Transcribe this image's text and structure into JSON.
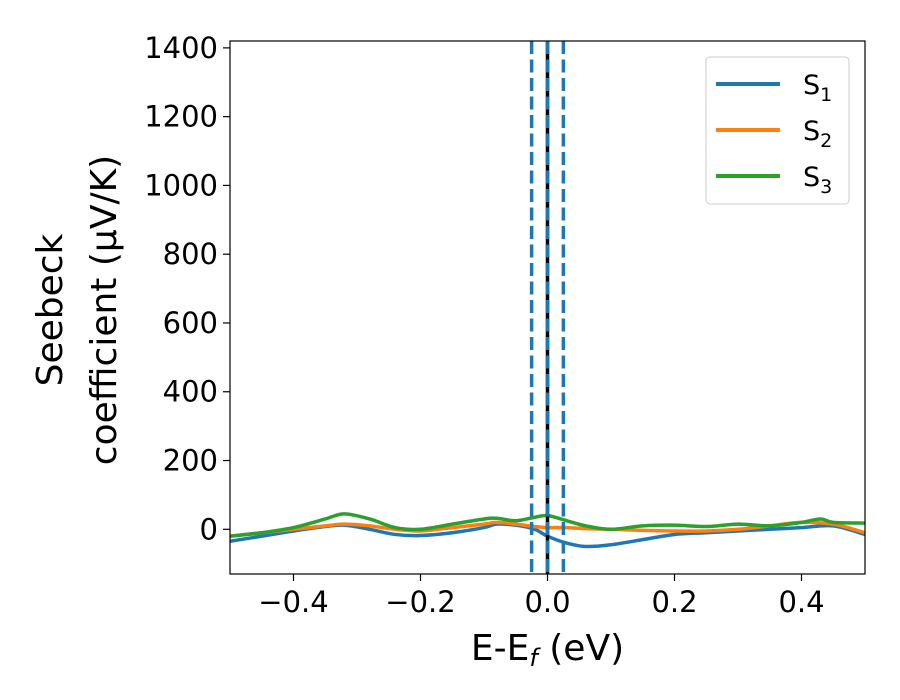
{
  "chart_data": {
    "type": "line",
    "xlabel": "E-E_f (eV)",
    "ylabel_line1": "Seebeck",
    "ylabel_line2": "coefficient  (μV/K)",
    "xlim": [
      -0.5,
      0.5
    ],
    "ylim": [
      -130,
      1420
    ],
    "xticks": [
      -0.4,
      -0.2,
      0.0,
      0.2,
      0.4
    ],
    "xtick_labels": [
      "−0.4",
      "−0.2",
      "0.0",
      "0.2",
      "0.4"
    ],
    "yticks": [
      0,
      200,
      400,
      600,
      800,
      1000,
      1200,
      1400
    ],
    "ytick_labels": [
      "0",
      "200",
      "400",
      "600",
      "800",
      "1000",
      "1200",
      "1400"
    ],
    "grid": false,
    "legend_position": "top-right",
    "vlines": [
      {
        "x": 0.0,
        "style": "solid",
        "color": "#000000"
      },
      {
        "x": -0.025,
        "style": "dashed",
        "color": "#1f77b4"
      },
      {
        "x": 0.0,
        "style": "dashed",
        "color": "#1f77b4"
      },
      {
        "x": 0.025,
        "style": "dashed",
        "color": "#1f77b4"
      }
    ],
    "series": [
      {
        "name": "S1",
        "label_main": "S",
        "label_sub": "1",
        "color": "#1f77b4",
        "x": [
          -0.5,
          -0.45,
          -0.4,
          -0.35,
          -0.32,
          -0.28,
          -0.24,
          -0.2,
          -0.15,
          -0.1,
          -0.08,
          -0.05,
          -0.02,
          0.0,
          0.03,
          0.06,
          0.1,
          0.15,
          0.2,
          0.25,
          0.3,
          0.35,
          0.4,
          0.45,
          0.5
        ],
        "y": [
          -35,
          -20,
          -5,
          8,
          12,
          0,
          -15,
          -18,
          -10,
          5,
          15,
          12,
          0,
          -20,
          -40,
          -50,
          -45,
          -30,
          -15,
          -10,
          -5,
          0,
          5,
          10,
          -15
        ]
      },
      {
        "name": "S2",
        "label_main": "S",
        "label_sub": "2",
        "color": "#ff7f0e",
        "x": [
          -0.5,
          -0.45,
          -0.4,
          -0.35,
          -0.32,
          -0.28,
          -0.24,
          -0.2,
          -0.15,
          -0.1,
          -0.08,
          -0.05,
          -0.02,
          0.0,
          0.03,
          0.06,
          0.1,
          0.15,
          0.2,
          0.25,
          0.3,
          0.35,
          0.4,
          0.45,
          0.5
        ],
        "y": [
          -20,
          -10,
          0,
          10,
          15,
          10,
          0,
          -5,
          5,
          15,
          20,
          15,
          8,
          5,
          5,
          2,
          0,
          -3,
          -5,
          -5,
          0,
          10,
          20,
          15,
          -10
        ]
      },
      {
        "name": "S3",
        "label_main": "S",
        "label_sub": "3",
        "color": "#2ca02c",
        "x": [
          -0.5,
          -0.45,
          -0.4,
          -0.35,
          -0.32,
          -0.28,
          -0.24,
          -0.2,
          -0.15,
          -0.1,
          -0.08,
          -0.05,
          -0.02,
          0.0,
          0.03,
          0.06,
          0.1,
          0.15,
          0.2,
          0.25,
          0.3,
          0.35,
          0.4,
          0.43,
          0.45,
          0.5
        ],
        "y": [
          -20,
          -10,
          5,
          30,
          45,
          30,
          5,
          0,
          15,
          30,
          32,
          25,
          35,
          40,
          25,
          10,
          0,
          10,
          12,
          8,
          15,
          10,
          20,
          30,
          20,
          18
        ]
      }
    ]
  }
}
